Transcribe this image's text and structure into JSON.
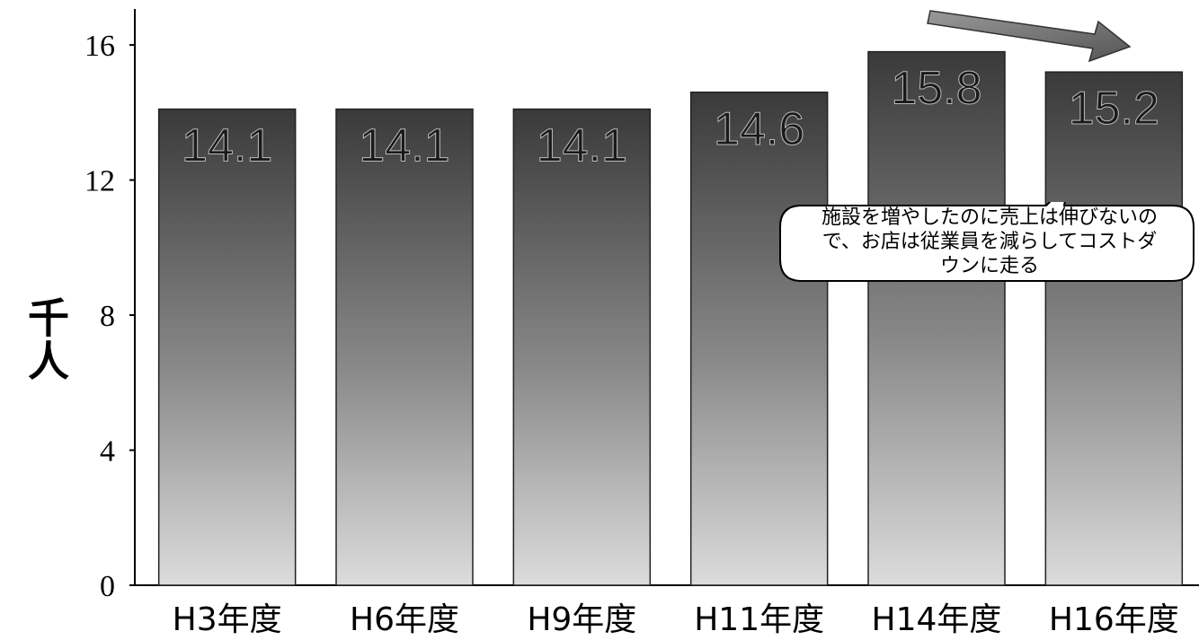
{
  "chart_data": {
    "type": "bar",
    "categories": [
      "H3年度",
      "H6年度",
      "H9年度",
      "H11年度",
      "H14年度",
      "H16年度"
    ],
    "values": [
      14.1,
      14.1,
      14.1,
      14.6,
      15.8,
      15.2
    ],
    "data_labels": [
      "14.1",
      "14.1",
      "14.1",
      "14.6",
      "15.8",
      "15.2"
    ],
    "ylabel": "千人",
    "ylim": [
      0,
      16.8
    ],
    "yticks": [
      0,
      4,
      8,
      12,
      16
    ],
    "grid": false,
    "legend": "none"
  },
  "annotation": {
    "text": "施設を増やしたのに売上は伸びないので、お店は従業員を減らしてコストダウンに走る",
    "line1": "施設を増やしたのに売上は伸びないの",
    "line2": "で、お店は従業員を減らしてコストダ",
    "line3": "ウンに走る"
  },
  "colors": {
    "bar_top": "#3a3a3a",
    "bar_bottom": "#d8d8d8",
    "text": "#000000",
    "arrow": "#7a7a7a"
  }
}
